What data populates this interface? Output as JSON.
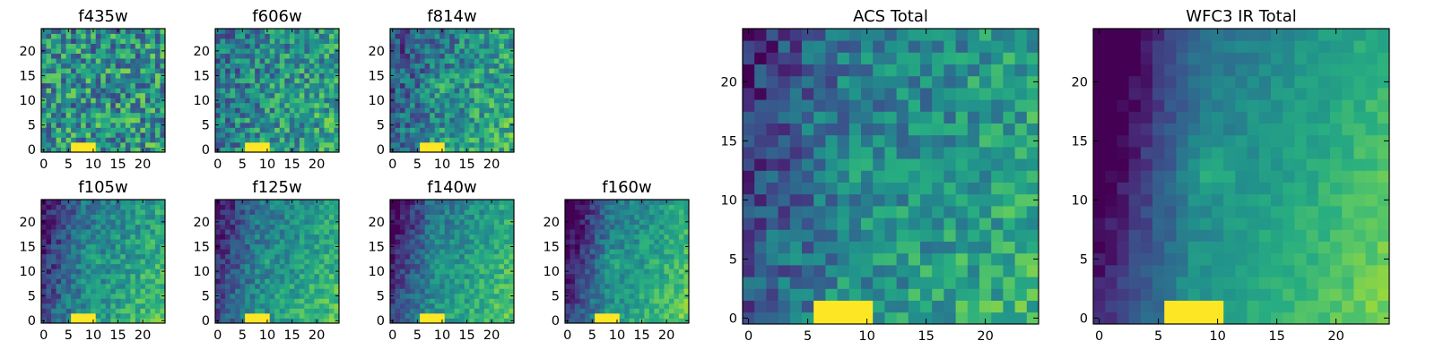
{
  "figure": {
    "colormap": "viridis",
    "colors": {
      "low": "#440154",
      "mid": "#21918c",
      "high": "#fde725"
    }
  },
  "chart_data": [
    {
      "type": "heatmap",
      "title": "f435w",
      "xlabel": "",
      "ylabel": "",
      "xticks": [
        "0",
        "5",
        "10",
        "15",
        "20"
      ],
      "yticks": [
        "0",
        "5",
        "10",
        "15",
        "20"
      ],
      "xlim": [
        -0.5,
        24.5
      ],
      "ylim": [
        -0.5,
        24.5
      ],
      "grid": false,
      "rows": 25,
      "cols": 25,
      "origin": "lower",
      "features": {
        "bright_blob": [
          6,
          10,
          0,
          1
        ],
        "noise": 0.3,
        "base": 0.5,
        "gradient": 0.05,
        "dark_left": 0.0
      }
    },
    {
      "type": "heatmap",
      "title": "f606w",
      "xlabel": "",
      "ylabel": "",
      "xticks": [
        "0",
        "5",
        "10",
        "15",
        "20"
      ],
      "yticks": [
        "0",
        "5",
        "10",
        "15",
        "20"
      ],
      "xlim": [
        -0.5,
        24.5
      ],
      "ylim": [
        -0.5,
        24.5
      ],
      "grid": false,
      "rows": 25,
      "cols": 25,
      "origin": "lower",
      "features": {
        "bright_blob": [
          6,
          10,
          0,
          1
        ],
        "noise": 0.25,
        "base": 0.48,
        "gradient": 0.2,
        "dark_left": 0.05
      }
    },
    {
      "type": "heatmap",
      "title": "f814w",
      "xlabel": "",
      "ylabel": "",
      "xticks": [
        "0",
        "5",
        "10",
        "15",
        "20"
      ],
      "yticks": [
        "0",
        "5",
        "10",
        "15",
        "20"
      ],
      "xlim": [
        -0.5,
        24.5
      ],
      "ylim": [
        -0.5,
        24.5
      ],
      "grid": false,
      "rows": 25,
      "cols": 25,
      "origin": "lower",
      "features": {
        "bright_blob": [
          6,
          10,
          0,
          1
        ],
        "noise": 0.22,
        "base": 0.45,
        "gradient": 0.35,
        "dark_left": 0.1
      }
    },
    {
      "type": "heatmap",
      "title": "f105w",
      "xlabel": "",
      "ylabel": "",
      "xticks": [
        "0",
        "5",
        "10",
        "15",
        "20"
      ],
      "yticks": [
        "0",
        "5",
        "10",
        "15",
        "20"
      ],
      "xlim": [
        -0.5,
        24.5
      ],
      "ylim": [
        -0.5,
        24.5
      ],
      "grid": false,
      "rows": 25,
      "cols": 25,
      "origin": "lower",
      "features": {
        "bright_blob": [
          6,
          10,
          0,
          1
        ],
        "noise": 0.15,
        "base": 0.45,
        "gradient": 0.45,
        "dark_left": 0.25
      }
    },
    {
      "type": "heatmap",
      "title": "f125w",
      "xlabel": "",
      "ylabel": "",
      "xticks": [
        "0",
        "5",
        "10",
        "15",
        "20"
      ],
      "yticks": [
        "0",
        "5",
        "10",
        "15",
        "20"
      ],
      "xlim": [
        -0.5,
        24.5
      ],
      "ylim": [
        -0.5,
        24.5
      ],
      "grid": false,
      "rows": 25,
      "cols": 25,
      "origin": "lower",
      "features": {
        "bright_blob": [
          6,
          10,
          0,
          1
        ],
        "noise": 0.14,
        "base": 0.45,
        "gradient": 0.45,
        "dark_left": 0.25
      }
    },
    {
      "type": "heatmap",
      "title": "f140w",
      "xlabel": "",
      "ylabel": "",
      "xticks": [
        "0",
        "5",
        "10",
        "15",
        "20"
      ],
      "yticks": [
        "0",
        "5",
        "10",
        "15",
        "20"
      ],
      "xlim": [
        -0.5,
        24.5
      ],
      "ylim": [
        -0.5,
        24.5
      ],
      "grid": false,
      "rows": 25,
      "cols": 25,
      "origin": "lower",
      "features": {
        "bright_blob": [
          6,
          10,
          0,
          1
        ],
        "noise": 0.13,
        "base": 0.45,
        "gradient": 0.5,
        "dark_left": 0.3
      }
    },
    {
      "type": "heatmap",
      "title": "f160w",
      "xlabel": "",
      "ylabel": "",
      "xticks": [
        "0",
        "5",
        "10",
        "15",
        "20"
      ],
      "yticks": [
        "0",
        "5",
        "10",
        "15",
        "20"
      ],
      "xlim": [
        -0.5,
        24.5
      ],
      "ylim": [
        -0.5,
        24.5
      ],
      "grid": false,
      "rows": 25,
      "cols": 25,
      "origin": "lower",
      "features": {
        "bright_blob": [
          6,
          10,
          0,
          1
        ],
        "noise": 0.12,
        "base": 0.45,
        "gradient": 0.55,
        "dark_left": 0.35
      }
    },
    {
      "type": "heatmap",
      "title": "ACS Total",
      "xlabel": "",
      "ylabel": "",
      "xticks": [
        "0",
        "5",
        "10",
        "15",
        "20"
      ],
      "yticks": [
        "0",
        "5",
        "10",
        "15",
        "20"
      ],
      "xlim": [
        -0.5,
        24.5
      ],
      "ylim": [
        -0.5,
        24.5
      ],
      "grid": false,
      "rows": 25,
      "cols": 25,
      "origin": "lower",
      "features": {
        "bright_blob": [
          6,
          10,
          0,
          1
        ],
        "noise": 0.18,
        "base": 0.45,
        "gradient": 0.35,
        "dark_left": 0.2
      }
    },
    {
      "type": "heatmap",
      "title": "WFC3 IR Total",
      "xlabel": "",
      "ylabel": "",
      "xticks": [
        "0",
        "5",
        "10",
        "15",
        "20"
      ],
      "yticks": [
        "0",
        "5",
        "10",
        "15",
        "20"
      ],
      "xlim": [
        -0.5,
        24.5
      ],
      "ylim": [
        -0.5,
        24.5
      ],
      "grid": false,
      "rows": 25,
      "cols": 25,
      "origin": "lower",
      "features": {
        "bright_blob": [
          6,
          10,
          0,
          1
        ],
        "noise": 0.06,
        "base": 0.45,
        "gradient": 0.6,
        "dark_left": 0.45
      }
    }
  ]
}
